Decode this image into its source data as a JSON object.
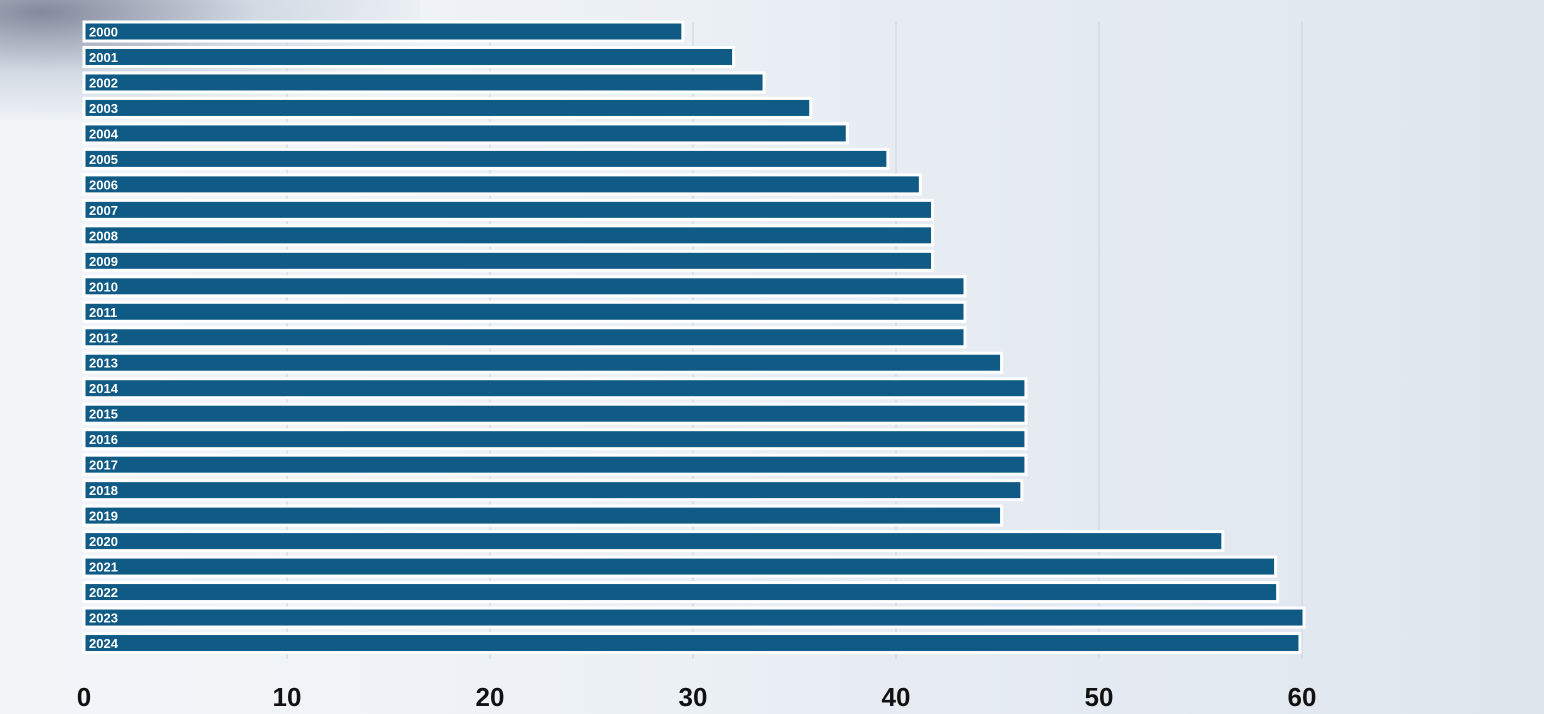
{
  "chart_data": {
    "type": "bar",
    "orientation": "horizontal",
    "categories": [
      "2000",
      "2001",
      "2002",
      "2003",
      "2004",
      "2005",
      "2006",
      "2007",
      "2008",
      "2009",
      "2010",
      "2011",
      "2012",
      "2013",
      "2014",
      "2015",
      "2016",
      "2017",
      "2018",
      "2019",
      "2020",
      "2021",
      "2022",
      "2023",
      "2024"
    ],
    "values": [
      29.5,
      32,
      33.5,
      35.8,
      37.6,
      39.6,
      41.2,
      41.8,
      41.8,
      41.8,
      43.4,
      43.4,
      43.4,
      45.2,
      46.4,
      46.4,
      46.4,
      46.4,
      46.2,
      45.2,
      56.1,
      58.7,
      58.8,
      60.1,
      59.9
    ],
    "title": "",
    "xlabel": "",
    "ylabel": "",
    "xlim": [
      0,
      60
    ],
    "xticks": [
      "0",
      "10",
      "20",
      "30",
      "40",
      "50",
      "60"
    ],
    "grid": true,
    "bar_color": "#0f5b86"
  }
}
